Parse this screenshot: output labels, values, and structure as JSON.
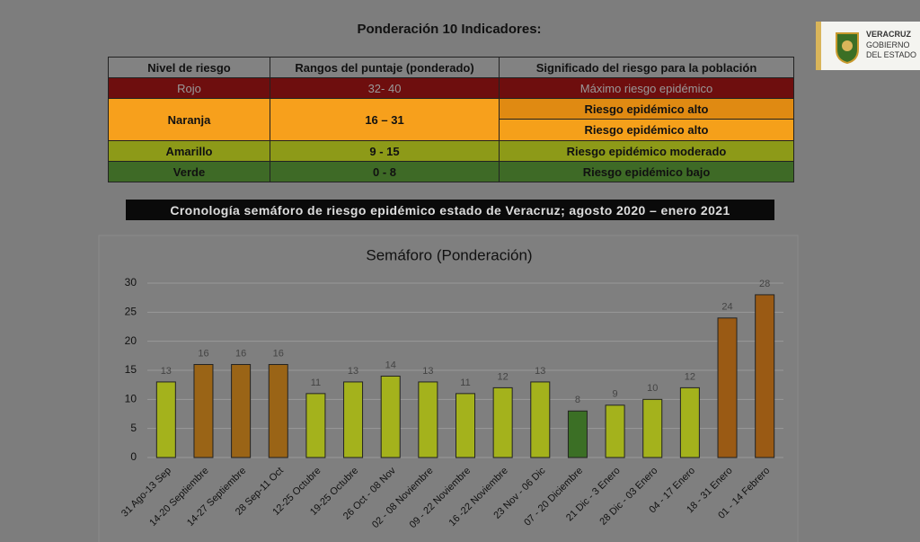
{
  "title": "Ponderación 10 Indicadores:",
  "logo": {
    "line1": "VERACRUZ",
    "line2": "GOBIERNO",
    "line3": "DEL ESTADO"
  },
  "table": {
    "headers": [
      "Nivel de riesgo",
      "Rangos del puntaje (ponderado)",
      "Significado del riesgo para la población"
    ],
    "rows": [
      [
        "Rojo",
        "32- 40",
        "Máximo riesgo epidémico"
      ],
      [
        "Naranja",
        "16 – 31",
        "Riesgo epidémico alto",
        "Riesgo epidémico alto"
      ],
      [
        "Amarillo",
        "9 - 15",
        "Riesgo epidémico moderado"
      ],
      [
        "Verde",
        "0 - 8",
        "Riesgo epidémico bajo"
      ]
    ]
  },
  "banner": "Cronología semáforo de riesgo epidémico estado de Veracruz;  agosto 2020 – enero 2021",
  "chart_data": {
    "type": "bar",
    "title": "Semáforo (Ponderación)",
    "categories": [
      "31 Ago-13 Sep",
      "14-20 Septiembre",
      "14-27 Septiembre",
      "28 Sep-11 Oct",
      "12-25 Octubre",
      "19-25 Octubre",
      "26 Oct - 08 Nov",
      "02 - 08 Noviembre",
      "09 - 22 Noviembre",
      "16 -22 Noviembre",
      "23 Nov - 06 Dic",
      "07 - 20 Diciembre",
      "21 Dic - 3 Enero",
      "28 Dic - 03 Enero",
      "04 - 17 Enero",
      "18 - 31 Enero",
      "01 - 14 Febrero"
    ],
    "values": [
      13,
      16,
      16,
      16,
      11,
      13,
      14,
      13,
      11,
      12,
      13,
      8,
      9,
      10,
      12,
      24,
      28
    ],
    "colors": [
      "#a4b21c",
      "#9a6416",
      "#9a6416",
      "#9a6416",
      "#a4b21c",
      "#a4b21c",
      "#a4b21c",
      "#a4b21c",
      "#a4b21c",
      "#a4b21c",
      "#a4b21c",
      "#3b6f25",
      "#a4b21c",
      "#a4b21c",
      "#a4b21c",
      "#9a5a14",
      "#9a5a14"
    ],
    "ylim": [
      0,
      30
    ],
    "yticks": [
      0,
      5,
      10,
      15,
      20,
      25,
      30
    ],
    "grid": true
  }
}
